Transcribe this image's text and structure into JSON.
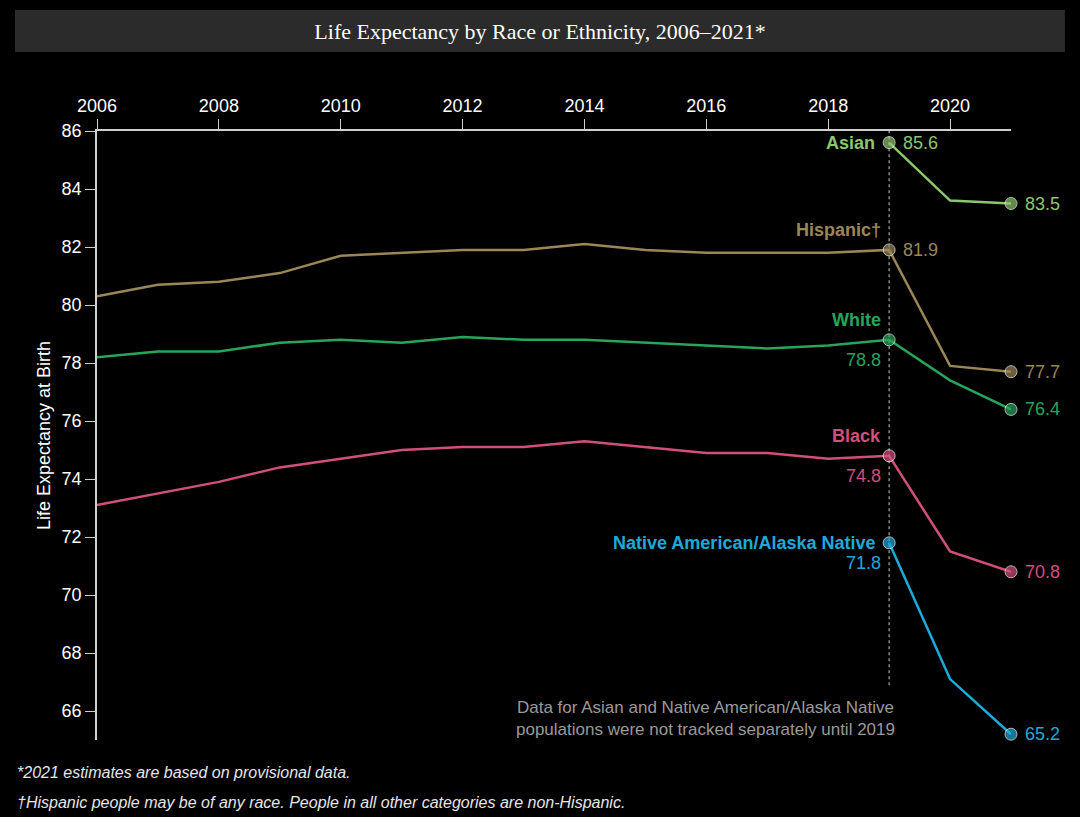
{
  "chart_data": {
    "type": "line",
    "title": "Life Expectancy by Race or Ethnicity, 2006–2021*",
    "y_label": "Life Expectancy at Birth",
    "x": [
      2006,
      2007,
      2008,
      2009,
      2010,
      2011,
      2012,
      2013,
      2014,
      2015,
      2016,
      2017,
      2018,
      2019,
      2020,
      2021
    ],
    "series": [
      {
        "name": "Asian",
        "color": "#8cc76b",
        "values": [
          null,
          null,
          null,
          null,
          null,
          null,
          null,
          null,
          null,
          null,
          null,
          null,
          null,
          85.6,
          83.6,
          83.5
        ],
        "value_labels": [
          null,
          null,
          null,
          null,
          null,
          null,
          null,
          null,
          null,
          null,
          null,
          null,
          null,
          "85.6",
          null,
          "83.5"
        ]
      },
      {
        "name": "Hispanic†",
        "color": "#9a8657",
        "values": [
          80.3,
          80.7,
          80.8,
          81.1,
          81.7,
          81.8,
          81.9,
          81.9,
          82.1,
          81.9,
          81.8,
          81.8,
          81.8,
          81.9,
          77.9,
          77.7
        ],
        "value_labels": [
          null,
          null,
          null,
          null,
          null,
          null,
          null,
          null,
          null,
          null,
          null,
          null,
          null,
          "81.9",
          null,
          "77.7"
        ]
      },
      {
        "name": "White",
        "color": "#27a55a",
        "values": [
          78.2,
          78.4,
          78.4,
          78.7,
          78.8,
          78.7,
          78.9,
          78.8,
          78.8,
          78.7,
          78.6,
          78.5,
          78.6,
          78.8,
          77.4,
          76.4
        ],
        "value_labels": [
          null,
          null,
          null,
          null,
          null,
          null,
          null,
          null,
          null,
          null,
          null,
          null,
          null,
          "78.8",
          null,
          "76.4"
        ]
      },
      {
        "name": "Black",
        "color": "#d04f7c",
        "values": [
          73.1,
          73.5,
          73.9,
          74.4,
          74.7,
          75.0,
          75.1,
          75.1,
          75.3,
          75.1,
          74.9,
          74.9,
          74.7,
          74.8,
          71.5,
          70.8
        ],
        "value_labels": [
          null,
          null,
          null,
          null,
          null,
          null,
          null,
          null,
          null,
          null,
          null,
          null,
          null,
          "74.8",
          null,
          "70.8"
        ]
      },
      {
        "name": "Native American/Alaska Native",
        "color": "#1eaad9",
        "values": [
          null,
          null,
          null,
          null,
          null,
          null,
          null,
          null,
          null,
          null,
          null,
          null,
          null,
          71.8,
          67.1,
          65.2
        ],
        "value_labels": [
          null,
          null,
          null,
          null,
          null,
          null,
          null,
          null,
          null,
          null,
          null,
          null,
          null,
          "71.8",
          null,
          "65.2"
        ]
      }
    ],
    "xlim": [
      2006,
      2021
    ],
    "xticks": [
      2006,
      2008,
      2010,
      2012,
      2014,
      2016,
      2018,
      2020
    ],
    "ylim": [
      65,
      86
    ],
    "yticks": [
      66,
      68,
      70,
      72,
      74,
      76,
      78,
      80,
      82,
      84,
      86
    ],
    "grid": false,
    "marker": "circle",
    "data_labels": true,
    "vline": 2019,
    "annotation": [
      "Data for Asian and Native American/Alaska Native",
      "populations were not tracked separately until 2019"
    ],
    "notes": [
      "*2021 estimates are based on provisional data.",
      "†Hispanic people may be of any race. People in all other categories are non-Hispanic."
    ]
  }
}
